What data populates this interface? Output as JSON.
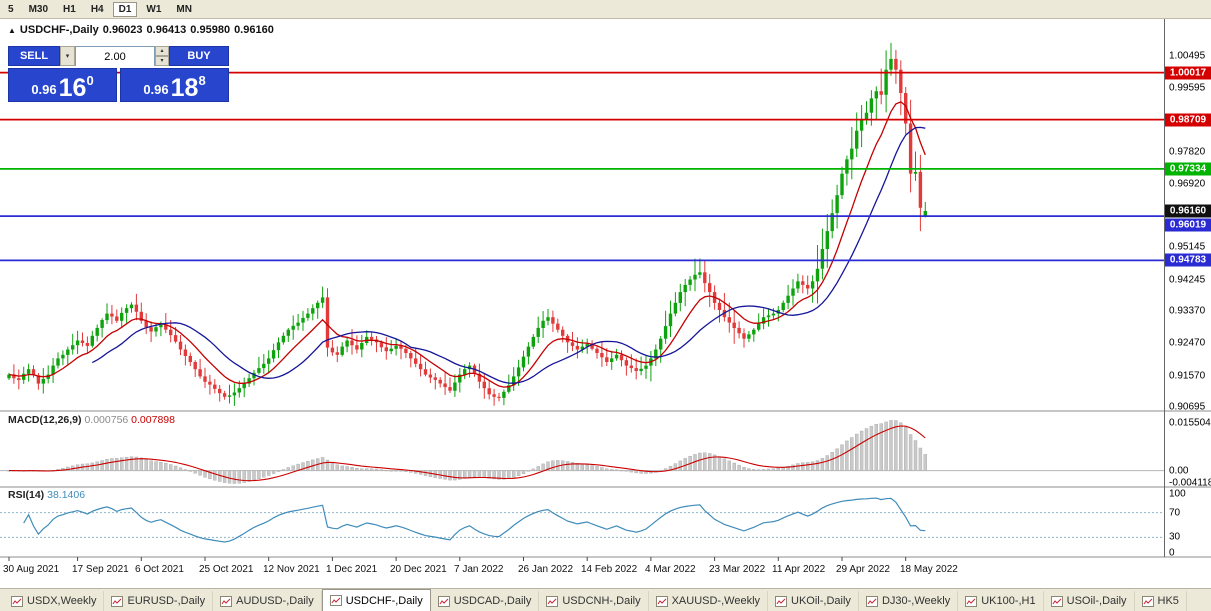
{
  "toolbar": {
    "buttons": [
      {
        "label": "5",
        "active": false
      },
      {
        "label": "M30",
        "active": false
      },
      {
        "label": "H1",
        "active": false
      },
      {
        "label": "H4",
        "active": false
      },
      {
        "label": "D1",
        "active": true
      },
      {
        "label": "W1",
        "active": false
      },
      {
        "label": "MN",
        "active": false
      }
    ]
  },
  "chart_header": {
    "symbol": "USDCHF-,Daily",
    "open": "0.96023",
    "high": "0.96413",
    "low": "0.95980",
    "close": "0.96160"
  },
  "icons": {
    "collapse": "▲",
    "dropdown": "▾",
    "spin_up": "▴",
    "spin_down": "▾"
  },
  "one_click": {
    "sell": "SELL",
    "buy": "BUY",
    "volume": "2.00",
    "sell_price_prefix": "0.96",
    "sell_price_big": "16",
    "sell_price_sup": "0",
    "buy_price_prefix": "0.96",
    "buy_price_big": "18",
    "buy_price_sup": "8",
    "panel_color": "#2746cd"
  },
  "chart_data": {
    "type": "candlestick",
    "symbol": "USDCHF-",
    "timeframe": "Daily",
    "title": "USDCHF-,Daily",
    "ylim": [
      0.9058,
      1.0154
    ],
    "bars_total": 188,
    "up_color": "#0da30d",
    "down_color": "#e23a3a",
    "first_open": 0.915,
    "closes": [
      0.916,
      0.915,
      0.9145,
      0.9162,
      0.9175,
      0.9158,
      0.9135,
      0.9148,
      0.916,
      0.9185,
      0.9205,
      0.9215,
      0.923,
      0.9242,
      0.9255,
      0.9248,
      0.924,
      0.9268,
      0.929,
      0.9312,
      0.933,
      0.9322,
      0.931,
      0.9332,
      0.9345,
      0.9355,
      0.9335,
      0.931,
      0.9292,
      0.928,
      0.9292,
      0.93,
      0.9285,
      0.927,
      0.9252,
      0.923,
      0.9212,
      0.9195,
      0.9175,
      0.9155,
      0.914,
      0.9132,
      0.912,
      0.9108,
      0.9098,
      0.9102,
      0.911,
      0.9122,
      0.9135,
      0.915,
      0.9165,
      0.9178,
      0.919,
      0.9205,
      0.9228,
      0.925,
      0.9268,
      0.9285,
      0.9296,
      0.9305,
      0.9318,
      0.933,
      0.9345,
      0.936,
      0.9375,
      0.9235,
      0.9222,
      0.9215,
      0.9238,
      0.9255,
      0.9242,
      0.923,
      0.9248,
      0.9265,
      0.9258,
      0.925,
      0.9236,
      0.9225,
      0.9232,
      0.924,
      0.9232,
      0.922,
      0.9205,
      0.919,
      0.9175,
      0.916,
      0.9152,
      0.9145,
      0.9135,
      0.9125,
      0.9115,
      0.9138,
      0.916,
      0.9175,
      0.9185,
      0.9162,
      0.914,
      0.9122,
      0.9105,
      0.9098,
      0.9095,
      0.9112,
      0.913,
      0.9155,
      0.918,
      0.921,
      0.9238,
      0.9265,
      0.929,
      0.931,
      0.932,
      0.9302,
      0.9285,
      0.9268,
      0.925,
      0.924,
      0.923,
      0.9238,
      0.9245,
      0.9232,
      0.922,
      0.9208,
      0.9195,
      0.9205,
      0.9215,
      0.92,
      0.9185,
      0.9178,
      0.917,
      0.9176,
      0.9185,
      0.9205,
      0.923,
      0.926,
      0.9295,
      0.933,
      0.936,
      0.939,
      0.941,
      0.9425,
      0.9438,
      0.9445,
      0.9415,
      0.939,
      0.936,
      0.934,
      0.932,
      0.9305,
      0.929,
      0.9275,
      0.926,
      0.9272,
      0.9285,
      0.9302,
      0.932,
      0.9325,
      0.933,
      0.934,
      0.936,
      0.938,
      0.94,
      0.942,
      0.941,
      0.94,
      0.942,
      0.9455,
      0.951,
      0.956,
      0.961,
      0.966,
      0.972,
      0.976,
      0.979,
      0.984,
      0.987,
      0.989,
      0.993,
      0.995,
      0.994,
      1.001,
      1.004,
      1.001,
      0.9945,
      0.986,
      0.972,
      0.9725,
      0.9625,
      0.9616
    ],
    "bar_overrides": {
      "181": {
        "h": 1.0065
      },
      "186": {
        "l": 0.956
      },
      "187": {
        "o": 0.96023,
        "h": 0.96413,
        "l": 0.9598,
        "c": 0.9616
      }
    },
    "moving_averages": [
      {
        "name": "fast",
        "method": "ema",
        "period": 10,
        "color": "#c40000"
      },
      {
        "name": "slow",
        "method": "sma",
        "period": 18,
        "color": "#16169a"
      }
    ],
    "price_axis_ticks": [
      "1.00495",
      "0.99595",
      "0.97820",
      "0.96920",
      "0.95145",
      "0.94245",
      "0.93370",
      "0.92470",
      "0.91570",
      "0.90695"
    ],
    "levels": [
      {
        "price": 1.00017,
        "label": "1.00017",
        "color": "#d40000"
      },
      {
        "price": 0.98709,
        "label": "0.98709",
        "color": "#d40000"
      },
      {
        "price": 0.97334,
        "label": "0.97334",
        "color": "#00b300"
      },
      {
        "price": 0.96019,
        "label": "0.96019",
        "color": "#2b2bd4"
      },
      {
        "price": 0.94783,
        "label": "0.94783",
        "color": "#2b2bd4"
      }
    ],
    "current_price": {
      "label": "0.96160",
      "price": 0.9616,
      "badge_color": "#101010"
    },
    "x_axis_dates": [
      {
        "label": "30 Aug 2021",
        "bar": 0
      },
      {
        "label": "17 Sep 2021",
        "bar": 14
      },
      {
        "label": "6 Oct 2021",
        "bar": 27
      },
      {
        "label": "25 Oct 2021",
        "bar": 40
      },
      {
        "label": "12 Nov 2021",
        "bar": 53
      },
      {
        "label": "1 Dec 2021",
        "bar": 66
      },
      {
        "label": "20 Dec 2021",
        "bar": 79
      },
      {
        "label": "7 Jan 2022",
        "bar": 92
      },
      {
        "label": "26 Jan 2022",
        "bar": 105
      },
      {
        "label": "14 Feb 2022",
        "bar": 118
      },
      {
        "label": "4 Mar 2022",
        "bar": 131
      },
      {
        "label": "23 Mar 2022",
        "bar": 144
      },
      {
        "label": "11 Apr 2022",
        "bar": 157
      },
      {
        "label": "29 Apr 2022",
        "bar": 170
      },
      {
        "label": "18 May 2022",
        "bar": 183
      }
    ]
  },
  "macd_panel": {
    "label": "MACD(12,26,9)",
    "value_main": "0.000756",
    "value_signal": "0.007898",
    "params": {
      "fast": 12,
      "slow": 26,
      "signal": 9
    },
    "axis_labels": [
      "0.015504",
      "0.00",
      "-0.004118"
    ],
    "ylim": [
      -0.004118,
      0.015504
    ],
    "histogram_color": "#c9c9c9",
    "signal_color": "#cc0000"
  },
  "rsi_panel": {
    "label": "RSI(14)",
    "value": "38.1406",
    "period": 14,
    "axis_labels": [
      "100",
      "70",
      "30",
      "0"
    ],
    "levels": [
      70,
      30
    ],
    "ylim": [
      0,
      100
    ],
    "line_color": "#3f8cba"
  },
  "tabs": [
    {
      "label": "USDX,Weekly",
      "active": false
    },
    {
      "label": "EURUSD-,Daily",
      "active": false
    },
    {
      "label": "AUDUSD-,Daily",
      "active": false
    },
    {
      "label": "USDCHF-,Daily",
      "active": true
    },
    {
      "label": "USDCAD-,Daily",
      "active": false
    },
    {
      "label": "USDCNH-,Daily",
      "active": false
    },
    {
      "label": "XAUUSD-,Weekly",
      "active": false
    },
    {
      "label": "UKOil-,Daily",
      "active": false
    },
    {
      "label": "DJ30-,Weekly",
      "active": false
    },
    {
      "label": "UK100-,H1",
      "active": false
    },
    {
      "label": "USOil-,Daily",
      "active": false
    },
    {
      "label": "HK5",
      "active": false
    }
  ]
}
